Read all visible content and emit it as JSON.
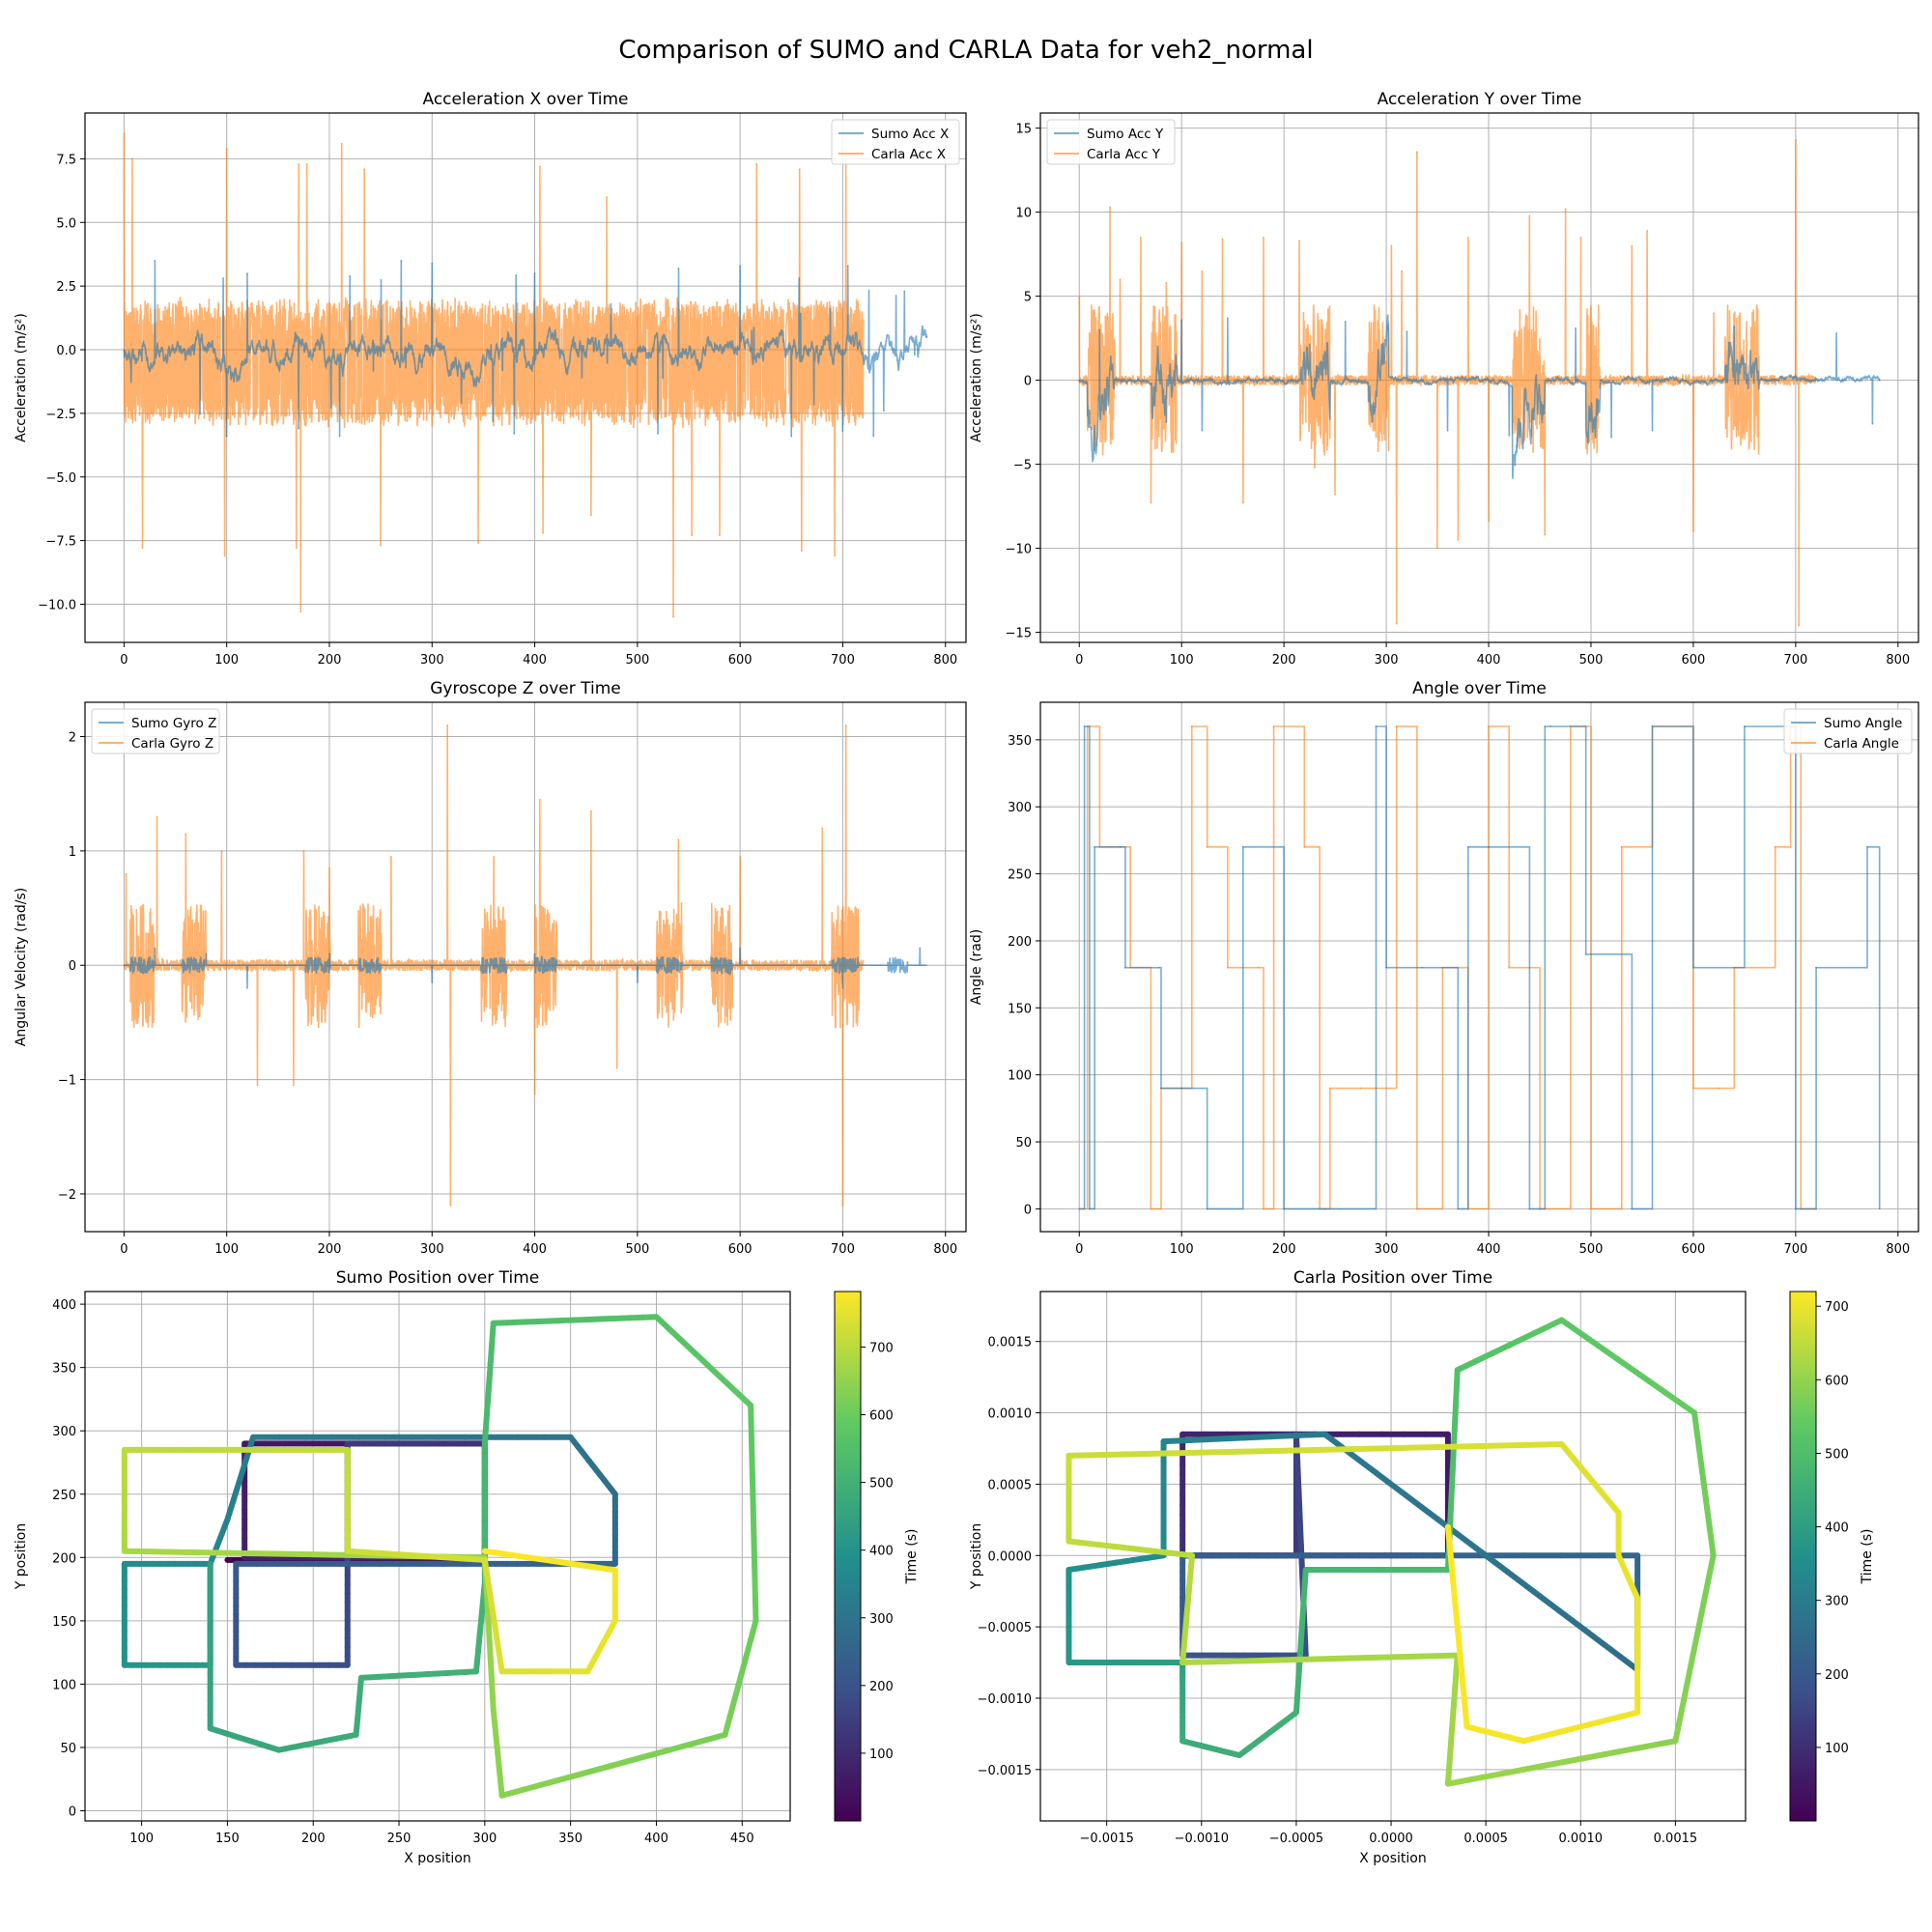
{
  "figure": {
    "title": "Comparison of SUMO and CARLA Data for veh2_normal"
  },
  "colors": {
    "sumo": "#1f77b4",
    "carla": "#ff7f0e",
    "grid": "#b0b0b0",
    "colormap": "viridis"
  },
  "chart_data": [
    {
      "id": "acc_x",
      "type": "line",
      "title": "Acceleration X over Time",
      "xlabel": "",
      "ylabel": "Acceleration (m/s²)",
      "xlim": [
        -38,
        820
      ],
      "ylim": [
        -11.5,
        9.3
      ],
      "xticks": [
        0,
        100,
        200,
        300,
        400,
        500,
        600,
        700,
        800
      ],
      "yticks": [
        -10.0,
        -7.5,
        -5.0,
        -2.5,
        0.0,
        2.5,
        5.0,
        7.5
      ],
      "ytick_labels": [
        "−10.0",
        "−7.5",
        "−5.0",
        "−2.5",
        "0.0",
        "2.5",
        "5.0",
        "7.5"
      ],
      "legend": "top-right",
      "series": [
        {
          "name": "Sumo Acc X",
          "color": "#1f77b4",
          "x_range": [
            0,
            782
          ],
          "x": [
            0,
            30,
            100,
            120,
            170,
            210,
            220,
            270,
            300,
            380,
            400,
            520,
            540,
            600,
            650,
            700,
            705,
            730,
            740,
            760,
            770,
            782
          ],
          "y": [
            0,
            3.5,
            -3.4,
            3.0,
            -3.1,
            -3.4,
            2.9,
            3.5,
            3.4,
            -3.3,
            3.0,
            -3.3,
            3.2,
            3.3,
            -3.4,
            -3.2,
            3.3,
            -3.4,
            -2.4,
            2.3,
            -0.2,
            0.5
          ]
        },
        {
          "name": "Carla Acc X",
          "color": "#ff7f0e",
          "x_range": [
            0,
            720
          ],
          "x": [
            0,
            8,
            18,
            98,
            100,
            168,
            170,
            172,
            178,
            212,
            234,
            250,
            345,
            405,
            408,
            455,
            470,
            535,
            553,
            580,
            616,
            658,
            660,
            692,
            703
          ],
          "y": [
            8.5,
            7.5,
            -7.8,
            -8.1,
            7.9,
            -7.8,
            7.3,
            -10.3,
            7.3,
            8.1,
            7.1,
            -7.7,
            -7.6,
            7.2,
            -7.2,
            -6.5,
            6.0,
            -10.5,
            -7.3,
            -7.3,
            7.3,
            7.1,
            -7.9,
            -8.1,
            7.5
          ]
        }
      ]
    },
    {
      "id": "acc_y",
      "type": "line",
      "title": "Acceleration Y over Time",
      "xlabel": "",
      "ylabel": "Acceleration (m/s²)",
      "xlim": [
        -38,
        820
      ],
      "ylim": [
        -15.6,
        15.9
      ],
      "xticks": [
        0,
        100,
        200,
        300,
        400,
        500,
        600,
        700,
        800
      ],
      "yticks": [
        -15,
        -10,
        -5,
        0,
        5,
        10,
        15
      ],
      "ytick_labels": [
        "−15",
        "−10",
        "−5",
        "0",
        "5",
        "10",
        "15"
      ],
      "legend": "top-left",
      "series": [
        {
          "name": "Sumo Acc Y",
          "color": "#1f77b4",
          "x_range": [
            0,
            782
          ],
          "x": [
            0,
            20,
            85,
            100,
            120,
            145,
            260,
            320,
            360,
            420,
            485,
            520,
            560,
            640,
            740,
            775,
            782
          ],
          "y": [
            0,
            3.0,
            -2.5,
            3.6,
            -3.0,
            3.7,
            3.5,
            2.9,
            -3.0,
            -3.3,
            3.1,
            -3.4,
            -3.0,
            3.2,
            2.8,
            -2.6,
            0
          ]
        },
        {
          "name": "Carla Acc Y",
          "color": "#ff7f0e",
          "x_range": [
            0,
            720
          ],
          "x": [
            0,
            30,
            40,
            60,
            70,
            85,
            100,
            120,
            140,
            160,
            180,
            215,
            230,
            250,
            305,
            310,
            315,
            330,
            350,
            370,
            380,
            400,
            440,
            455,
            475,
            490,
            540,
            555,
            600,
            620,
            700,
            703
          ],
          "y": [
            5.0,
            10.3,
            6.0,
            8.5,
            -7.3,
            5.8,
            8.2,
            6.5,
            8.4,
            -7.3,
            8.5,
            8.3,
            -5.2,
            -6.8,
            8.0,
            -14.5,
            6.5,
            13.6,
            -10.0,
            -9.5,
            8.5,
            -8.4,
            9.8,
            -9.2,
            10.2,
            8.5,
            8.0,
            8.9,
            -9.0,
            4.0,
            14.3,
            -14.6
          ]
        }
      ]
    },
    {
      "id": "gyro_z",
      "type": "line",
      "title": "Gyroscope Z over Time",
      "xlabel": "",
      "ylabel": "Angular Velocity (rad/s)",
      "xlim": [
        -38,
        820
      ],
      "ylim": [
        -2.33,
        2.3
      ],
      "xticks": [
        0,
        100,
        200,
        300,
        400,
        500,
        600,
        700,
        800
      ],
      "yticks": [
        -2,
        -1,
        0,
        1,
        2
      ],
      "ytick_labels": [
        "−2",
        "−1",
        "0",
        "1",
        "2"
      ],
      "legend": "top-left",
      "series": [
        {
          "name": "Sumo Gyro Z",
          "color": "#1f77b4",
          "x_range": [
            0,
            782
          ],
          "x": [
            0,
            30,
            80,
            120,
            200,
            300,
            400,
            500,
            600,
            700,
            775
          ],
          "y": [
            0,
            0.15,
            0.1,
            -0.2,
            0.1,
            -0.15,
            0.1,
            -0.15,
            0.15,
            -0.2,
            0.15
          ]
        },
        {
          "name": "Carla Gyro Z",
          "color": "#ff7f0e",
          "x_range": [
            0,
            720
          ],
          "x": [
            2,
            32,
            60,
            95,
            130,
            165,
            175,
            200,
            260,
            315,
            318,
            360,
            400,
            405,
            455,
            480,
            540,
            600,
            680,
            700,
            703
          ],
          "y": [
            0.8,
            1.3,
            1.15,
            1.0,
            -1.05,
            -1.05,
            1.0,
            0.85,
            0.95,
            2.1,
            -2.1,
            0.95,
            -1.13,
            1.45,
            1.35,
            -0.9,
            1.1,
            0.95,
            1.2,
            -2.1,
            2.1
          ]
        }
      ]
    },
    {
      "id": "angle",
      "type": "line",
      "title": "Angle over Time",
      "xlabel": "",
      "ylabel": "Angle (rad)",
      "xlim": [
        -38,
        820
      ],
      "ylim": [
        -17,
        378
      ],
      "xticks": [
        0,
        100,
        200,
        300,
        400,
        500,
        600,
        700,
        800
      ],
      "yticks": [
        0,
        50,
        100,
        150,
        200,
        250,
        300,
        350
      ],
      "legend": "top-right",
      "series": [
        {
          "name": "Sumo Angle",
          "color": "#1f77b4",
          "x_range": [
            0,
            782
          ],
          "x": [
            0,
            5,
            10,
            15,
            40,
            45,
            78,
            80,
            100,
            125,
            160,
            200,
            240,
            290,
            300,
            335,
            370,
            380,
            400,
            440,
            455,
            460,
            495,
            540,
            560,
            600,
            650,
            690,
            700,
            720,
            770,
            782
          ],
          "y": [
            0,
            360,
            0,
            270,
            270,
            180,
            180,
            90,
            90,
            0,
            270,
            0,
            0,
            360,
            180,
            180,
            0,
            270,
            270,
            0,
            360,
            360,
            190,
            0,
            360,
            180,
            360,
            360,
            0,
            180,
            270,
            0
          ]
        },
        {
          "name": "Carla Angle",
          "color": "#ff7f0e",
          "x_range": [
            0,
            720
          ],
          "x": [
            0,
            8,
            20,
            30,
            50,
            70,
            80,
            100,
            110,
            125,
            145,
            175,
            180,
            190,
            220,
            235,
            245,
            275,
            310,
            330,
            355,
            380,
            400,
            420,
            450,
            480,
            500,
            530,
            560,
            600,
            625,
            640,
            680,
            695,
            705,
            720
          ],
          "y": [
            0,
            360,
            270,
            270,
            180,
            0,
            90,
            90,
            360,
            270,
            180,
            180,
            0,
            360,
            270,
            0,
            90,
            90,
            360,
            0,
            180,
            0,
            360,
            180,
            0,
            360,
            0,
            270,
            360,
            90,
            90,
            180,
            270,
            360,
            0,
            0
          ]
        }
      ]
    },
    {
      "id": "sumo_pos",
      "type": "scatter",
      "title": "Sumo Position over Time",
      "xlabel": "X position",
      "ylabel": "Y position",
      "xlim": [
        67,
        478
      ],
      "ylim": [
        -8,
        410
      ],
      "xticks": [
        100,
        150,
        200,
        250,
        300,
        350,
        400,
        450
      ],
      "yticks": [
        0,
        50,
        100,
        150,
        200,
        250,
        300,
        350,
        400
      ],
      "colorbar": {
        "label": "Time (s)",
        "range": [
          0,
          782
        ],
        "ticks": [
          100,
          200,
          300,
          400,
          500,
          600,
          700
        ]
      },
      "path": [
        [
          150,
          198,
          0
        ],
        [
          300,
          198,
          20
        ],
        [
          300,
          290,
          40
        ],
        [
          160,
          290,
          60
        ],
        [
          160,
          200,
          80
        ],
        [
          300,
          200,
          100
        ],
        [
          300,
          290,
          120
        ],
        [
          220,
          290,
          140
        ],
        [
          220,
          200,
          160
        ],
        [
          220,
          115,
          180
        ],
        [
          155,
          115,
          200
        ],
        [
          155,
          195,
          220
        ],
        [
          300,
          195,
          240
        ],
        [
          376,
          195,
          260
        ],
        [
          376,
          250,
          280
        ],
        [
          350,
          295,
          300
        ],
        [
          165,
          295,
          320
        ],
        [
          150,
          230,
          340
        ],
        [
          140,
          195,
          360
        ],
        [
          90,
          195,
          380
        ],
        [
          90,
          115,
          400
        ],
        [
          140,
          115,
          420
        ],
        [
          140,
          195,
          440
        ],
        [
          140,
          65,
          460
        ],
        [
          180,
          48,
          470
        ],
        [
          225,
          60,
          480
        ],
        [
          228,
          105,
          490
        ],
        [
          295,
          110,
          500
        ],
        [
          300,
          180,
          510
        ],
        [
          300,
          290,
          520
        ],
        [
          305,
          385,
          540
        ],
        [
          400,
          390,
          560
        ],
        [
          455,
          320,
          580
        ],
        [
          458,
          150,
          600
        ],
        [
          440,
          60,
          620
        ],
        [
          310,
          12,
          640
        ],
        [
          305,
          80,
          650
        ],
        [
          300,
          200,
          660
        ],
        [
          90,
          205,
          680
        ],
        [
          90,
          285,
          700
        ],
        [
          220,
          285,
          710
        ],
        [
          220,
          205,
          720
        ],
        [
          300,
          198,
          730
        ],
        [
          310,
          110,
          740
        ],
        [
          360,
          110,
          750
        ],
        [
          376,
          150,
          760
        ],
        [
          376,
          190,
          770
        ],
        [
          300,
          205,
          780
        ]
      ]
    },
    {
      "id": "carla_pos",
      "type": "scatter",
      "title": "Carla Position over Time",
      "xlabel": "X position",
      "ylabel": "Y position",
      "xlim": [
        -0.00185,
        0.00187
      ],
      "ylim": [
        -0.00186,
        0.00185
      ],
      "xticks": [
        -0.0015,
        -0.001,
        -0.0005,
        0.0,
        0.0005,
        0.001,
        0.0015
      ],
      "xtick_labels": [
        "−0.0015",
        "−0.0010",
        "−0.0005",
        "0.0000",
        "0.0005",
        "0.0010",
        "0.0015"
      ],
      "yticks": [
        -0.0015,
        -0.001,
        -0.0005,
        0.0,
        0.0005,
        0.001,
        0.0015
      ],
      "ytick_labels": [
        "−0.0015",
        "−0.0010",
        "−0.0005",
        "0.0000",
        "0.0005",
        "0.0010",
        "0.0015"
      ],
      "colorbar": {
        "label": "Time (s)",
        "range": [
          0,
          720
        ],
        "ticks": [
          100,
          200,
          300,
          400,
          500,
          600,
          700
        ]
      },
      "path": [
        [
          -0.0011,
          0.0,
          0
        ],
        [
          -0.0005,
          0.0,
          20
        ],
        [
          0.0003,
          0.0,
          40
        ],
        [
          0.0003,
          0.00085,
          60
        ],
        [
          -0.0011,
          0.00085,
          80
        ],
        [
          -0.0011,
          0.0,
          100
        ],
        [
          -0.0005,
          0.0,
          120
        ],
        [
          -0.0005,
          0.00085,
          140
        ],
        [
          -0.00045,
          -0.0007,
          170
        ],
        [
          -0.0011,
          -0.0007,
          190
        ],
        [
          -0.0011,
          0.0,
          210
        ],
        [
          0.0013,
          0.0,
          240
        ],
        [
          0.0013,
          -0.0008,
          260
        ],
        [
          -0.00035,
          0.00085,
          290
        ],
        [
          -0.0012,
          0.0008,
          320
        ],
        [
          -0.0012,
          0.0,
          340
        ],
        [
          -0.0017,
          -0.0001,
          360
        ],
        [
          -0.0017,
          -0.00075,
          380
        ],
        [
          -0.0011,
          -0.00075,
          400
        ],
        [
          -0.0011,
          -0.0009,
          420
        ],
        [
          -0.0011,
          -0.0013,
          440
        ],
        [
          -0.0008,
          -0.0014,
          450
        ],
        [
          -0.0005,
          -0.0011,
          460
        ],
        [
          -0.00045,
          -0.0001,
          470
        ],
        [
          0.0003,
          -0.0001,
          490
        ],
        [
          0.00035,
          0.0013,
          510
        ],
        [
          0.0009,
          0.00165,
          530
        ],
        [
          0.0016,
          0.001,
          550
        ],
        [
          0.0017,
          0.0,
          570
        ],
        [
          0.0015,
          -0.0013,
          590
        ],
        [
          0.0003,
          -0.0016,
          610
        ],
        [
          0.00035,
          -0.0007,
          620
        ],
        [
          -0.0011,
          -0.00075,
          630
        ],
        [
          -0.00105,
          0.0,
          640
        ],
        [
          -0.0017,
          0.0001,
          650
        ],
        [
          -0.0017,
          0.0007,
          660
        ],
        [
          0.0009,
          0.00078,
          680
        ],
        [
          0.0012,
          0.0003,
          690
        ],
        [
          0.0012,
          0.0,
          695
        ],
        [
          0.0013,
          -0.0003,
          700
        ],
        [
          0.0013,
          -0.0011,
          705
        ],
        [
          0.0007,
          -0.0013,
          710
        ],
        [
          0.0004,
          -0.0012,
          715
        ],
        [
          0.0003,
          0.0002,
          720
        ]
      ]
    }
  ]
}
